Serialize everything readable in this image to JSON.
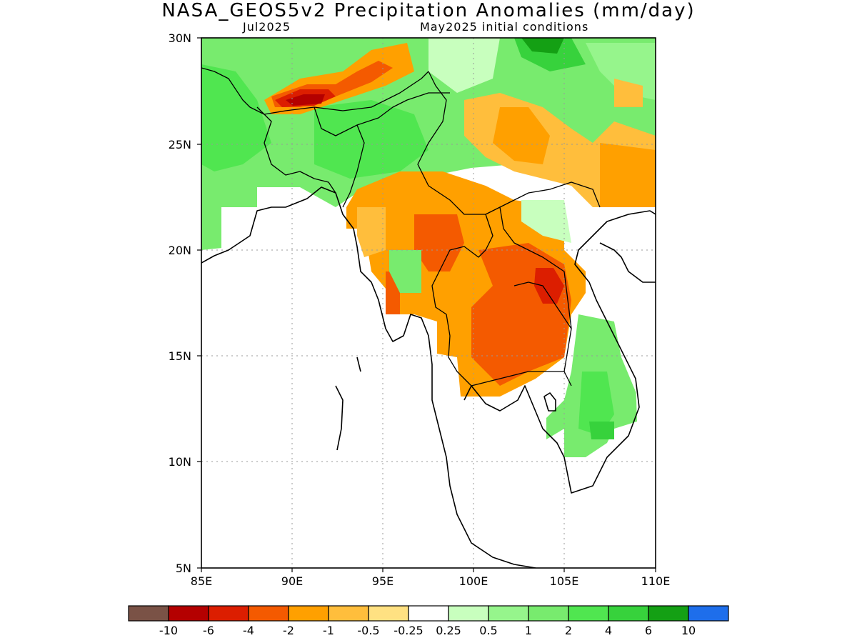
{
  "title": "NASA_GEOS5v2 Precipitation Anomalies (mm/day)",
  "subtitle_left": "Jul2025",
  "subtitle_right": "May2025 initial conditions",
  "axes": {
    "y_ticks": [
      "30N",
      "25N",
      "20N",
      "15N",
      "10N",
      "5N"
    ],
    "x_ticks": [
      "85E",
      "90E",
      "95E",
      "100E",
      "105E",
      "110E"
    ],
    "lat_range": [
      5,
      30
    ],
    "lon_range": [
      85,
      110
    ],
    "gridlines": true
  },
  "colorbar": {
    "colors": [
      "#7a5246",
      "#b40000",
      "#dc1e00",
      "#f45a00",
      "#ffa000",
      "#ffbe3c",
      "#ffe182",
      "#ffffff",
      "#c8ffbe",
      "#96f58c",
      "#78eb6e",
      "#50e650",
      "#37d23c",
      "#14a014",
      "#1e6eeb"
    ],
    "labels": [
      "-10",
      "-6",
      "-4",
      "-2",
      "-1",
      "-0.5",
      "-0.25",
      "0.25",
      "0.5",
      "1",
      "2",
      "4",
      "6",
      "10"
    ]
  },
  "map_regions": {
    "colors": {
      "strong_dry": "#b40000",
      "dry3": "#dc1e00",
      "dry2": "#f45a00",
      "dry1": "#ffa000",
      "dry_light": "#ffbe3c",
      "dry_faint": "#ffe182",
      "wet_faint": "#c8ffbe",
      "wet_light": "#96f58c",
      "wet1": "#78eb6e",
      "wet2": "#50e650",
      "wet3": "#37d23c",
      "wet_strong": "#14a014",
      "wet_max": "#1e6eeb"
    }
  }
}
